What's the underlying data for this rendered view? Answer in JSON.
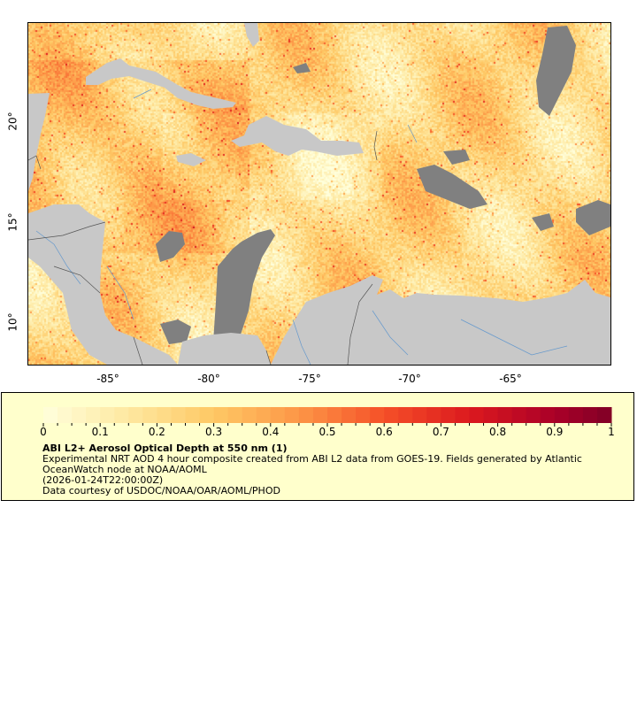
{
  "map": {
    "lon_range": [
      -89,
      -60
    ],
    "lat_range": [
      8,
      25
    ],
    "x_tick_labels": [
      "-85°",
      "-80°",
      "-75°",
      "-70°",
      "-65°"
    ],
    "y_tick_labels": [
      "20°",
      "15°",
      "10°"
    ],
    "colors": {
      "land": "#c8c8c8",
      "no_data": "#808080",
      "rivers": "#6699cc",
      "borders": "#555555"
    }
  },
  "legend": {
    "colorbar_ticks": [
      "0",
      "0.1",
      "0.2",
      "0.3",
      "0.4",
      "0.5",
      "0.6",
      "0.7",
      "0.8",
      "0.9",
      "1"
    ],
    "colorbar_range": [
      0,
      1
    ],
    "title": "ABI L2+ Aerosol Optical Depth at 550 nm (1)",
    "line1": "Experimental NRT AOD 4 hour composite created from ABI L2 data from GOES-19. Fields generated by Atlantic",
    "line2": "OceanWatch node at NOAA/AOML",
    "line3": "(2026-01-24T22:00:00Z)",
    "line4": "Data courtesy of USDOC/NOAA/OAR/AOML/PHOD",
    "colors": {
      "low": "#ffffcc",
      "mid": "#fd8d3c",
      "high": "#800026",
      "background": "#ffffcc"
    }
  }
}
